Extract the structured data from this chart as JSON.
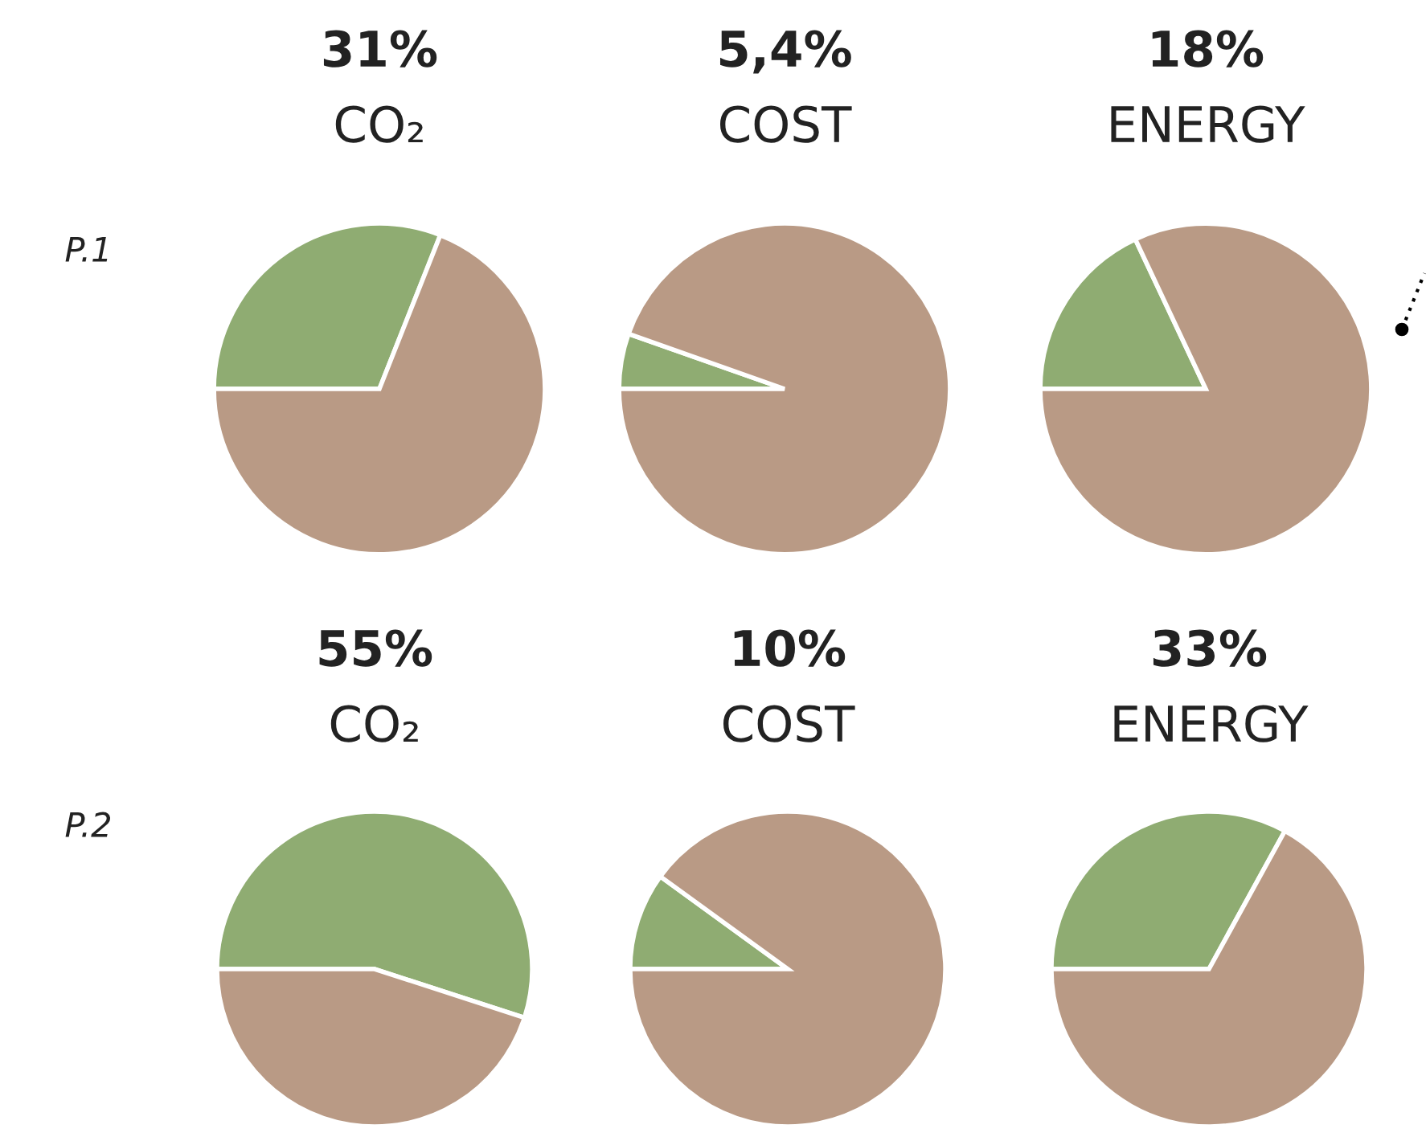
{
  "chart_data": [
    {
      "type": "pie",
      "title": "31%",
      "subtitle": "CO₂",
      "categories": [
        null,
        null
      ],
      "values": [
        31,
        69
      ],
      "colors": [
        "#8fac72",
        "#b99a85"
      ],
      "annotations": [
        "P.1"
      ]
    },
    {
      "type": "pie",
      "title": "5,4%",
      "subtitle": "COST",
      "categories": [
        null,
        null
      ],
      "values": [
        5.4,
        94.6
      ],
      "colors": [
        "#8fac72",
        "#b99a85"
      ]
    },
    {
      "type": "pie",
      "title": "18%",
      "subtitle": "ENERGY",
      "categories": [
        null,
        null
      ],
      "values": [
        18,
        82
      ],
      "colors": [
        "#8fac72",
        "#b99a85"
      ]
    },
    {
      "type": "pie",
      "title": "55%",
      "subtitle": "CO₂",
      "categories": [
        null,
        null
      ],
      "values": [
        55,
        45
      ],
      "colors": [
        "#8fac72",
        "#b99a85"
      ],
      "annotations": [
        "P.2"
      ]
    },
    {
      "type": "pie",
      "title": "10%",
      "subtitle": "COST",
      "categories": [
        null,
        null
      ],
      "values": [
        10,
        90
      ],
      "colors": [
        "#8fac72",
        "#b99a85"
      ]
    },
    {
      "type": "pie",
      "title": "33%",
      "subtitle": "ENERGY",
      "categories": [
        null,
        null
      ],
      "values": [
        33,
        67
      ],
      "colors": [
        "#8fac72",
        "#b99a85"
      ]
    }
  ]
}
